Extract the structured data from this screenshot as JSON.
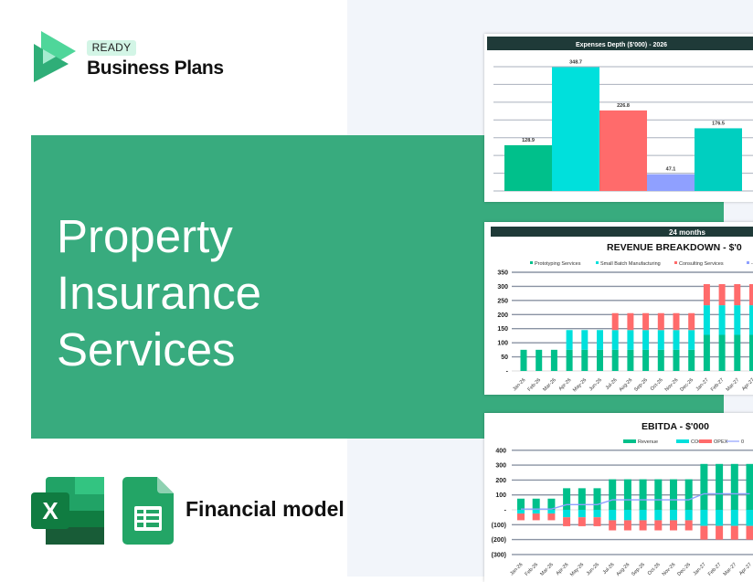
{
  "brand": {
    "badge": "READY",
    "name": "Business Plans"
  },
  "hero": {
    "title_lines": [
      "Property",
      "Insurance",
      "Services"
    ]
  },
  "footer": {
    "label": "Financial model",
    "icons": [
      "excel-icon",
      "google-sheets-icon"
    ]
  },
  "colors": {
    "banner": "#38ab7e",
    "header": "#1f3a38",
    "green": "#00c08b",
    "cyan": "#00e0dc",
    "red": "#ff6b6b",
    "lavender": "#8fa0ff",
    "teal": "#00cfc0"
  },
  "chart_data": [
    {
      "type": "bar",
      "title": "Expenses Depth ($'000) - 2026",
      "values": [
        128.9,
        348.7,
        226.8,
        47.1,
        176.5
      ],
      "data_labels": [
        "128.9",
        "348.7",
        "226.8",
        "47.1",
        "176.5"
      ],
      "colors": [
        "#00c08b",
        "#00e0dc",
        "#ff6b6b",
        "#8fa0ff",
        "#00cfc0"
      ],
      "ylim": [
        0,
        350
      ],
      "grid": true
    },
    {
      "type": "bar",
      "stacked": true,
      "header": "24 months",
      "title": "REVENUE BREAKDOWN - $'0",
      "legend": [
        "Prototyping Services",
        "Small Batch Manufacturing",
        "Consulting Services",
        "-"
      ],
      "legend_placement": "top",
      "categories": [
        "Jan-26",
        "Feb-26",
        "Mar-26",
        "Apr-26",
        "May-26",
        "Jun-26",
        "Jul-26",
        "Aug-26",
        "Sep-26",
        "Oct-26",
        "Nov-26",
        "Dec-26",
        "Jan-27",
        "Feb-27",
        "Mar-27",
        "Apr-27"
      ],
      "series": [
        {
          "name": "Prototyping Services",
          "color": "#00c08b",
          "values": [
            75,
            75,
            75,
            75,
            75,
            75,
            75,
            75,
            75,
            75,
            75,
            75,
            128,
            128,
            128,
            128
          ]
        },
        {
          "name": "Small Batch Manufacturing",
          "color": "#00e0dc",
          "values": [
            0,
            0,
            0,
            70,
            70,
            70,
            70,
            70,
            70,
            70,
            70,
            70,
            105,
            105,
            105,
            105
          ]
        },
        {
          "name": "Consulting Services",
          "color": "#ff6b6b",
          "values": [
            0,
            0,
            0,
            0,
            0,
            0,
            60,
            60,
            60,
            60,
            60,
            60,
            75,
            75,
            75,
            75
          ]
        }
      ],
      "yticks": [
        "-",
        "50",
        "100",
        "150",
        "200",
        "250",
        "300",
        "350"
      ],
      "ylim": [
        0,
        350
      ],
      "grid": true
    },
    {
      "type": "bar",
      "stacked": true,
      "title": "EBITDA - $'000",
      "legend": [
        "Revenue",
        "COGS",
        "OPEX",
        "0"
      ],
      "legend_placement": "top",
      "categories": [
        "Jan-26",
        "Feb-26",
        "Mar-26",
        "Apr-26",
        "May-26",
        "Jun-26",
        "Jul-26",
        "Aug-26",
        "Sep-26",
        "Oct-26",
        "Nov-26",
        "Dec-26",
        "Jan-27",
        "Feb-27",
        "Mar-27",
        "Apr-27"
      ],
      "series": [
        {
          "name": "Revenue",
          "color": "#00c08b",
          "values": [
            75,
            75,
            75,
            145,
            145,
            145,
            205,
            205,
            205,
            205,
            205,
            205,
            308,
            308,
            308,
            308
          ]
        },
        {
          "name": "COGS",
          "color": "#00e0dc",
          "values": [
            -25,
            -25,
            -25,
            -50,
            -50,
            -50,
            -70,
            -70,
            -70,
            -70,
            -70,
            -70,
            -108,
            -108,
            -108,
            -108
          ]
        },
        {
          "name": "OPEX",
          "color": "#ff6b6b",
          "values": [
            -45,
            -45,
            -45,
            -60,
            -60,
            -60,
            -68,
            -68,
            -68,
            -68,
            -68,
            -68,
            -92,
            -92,
            -92,
            -92
          ]
        },
        {
          "name": "0",
          "type": "line",
          "color": "#8fa0ff",
          "values": [
            5,
            5,
            5,
            35,
            35,
            35,
            67,
            67,
            67,
            67,
            67,
            67,
            108,
            108,
            108,
            108
          ]
        }
      ],
      "yticks": [
        "(300)",
        "(200)",
        "(100)",
        "-",
        "100",
        "200",
        "300",
        "400"
      ],
      "ylim": [
        -300,
        400
      ],
      "grid": true
    }
  ]
}
